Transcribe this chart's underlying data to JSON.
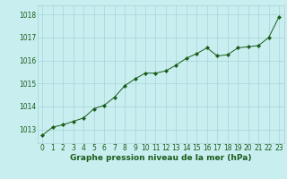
{
  "x": [
    0,
    1,
    2,
    3,
    4,
    5,
    6,
    7,
    8,
    9,
    10,
    11,
    12,
    13,
    14,
    15,
    16,
    17,
    18,
    19,
    20,
    21,
    22,
    23
  ],
  "y": [
    1012.75,
    1013.1,
    1013.2,
    1013.35,
    1013.5,
    1013.9,
    1014.05,
    1014.4,
    1014.9,
    1015.2,
    1015.45,
    1015.45,
    1015.55,
    1015.8,
    1016.1,
    1016.3,
    1016.55,
    1016.2,
    1016.25,
    1016.55,
    1016.6,
    1016.65,
    1017.0,
    1017.9
  ],
  "line_color": "#1a5c1a",
  "marker": "D",
  "marker_size": 2.2,
  "bg_color": "#c8eef0",
  "grid_color": "#a8d4d8",
  "axis_label_color": "#1a5c1a",
  "tick_label_color": "#1a5c1a",
  "xlabel": "Graphe pression niveau de la mer (hPa)",
  "ylim": [
    1012.4,
    1018.4
  ],
  "yticks": [
    1013,
    1014,
    1015,
    1016,
    1017,
    1018
  ],
  "xticks": [
    0,
    1,
    2,
    3,
    4,
    5,
    6,
    7,
    8,
    9,
    10,
    11,
    12,
    13,
    14,
    15,
    16,
    17,
    18,
    19,
    20,
    21,
    22,
    23
  ],
  "tick_fontsize": 5.5,
  "xlabel_fontsize": 6.5
}
